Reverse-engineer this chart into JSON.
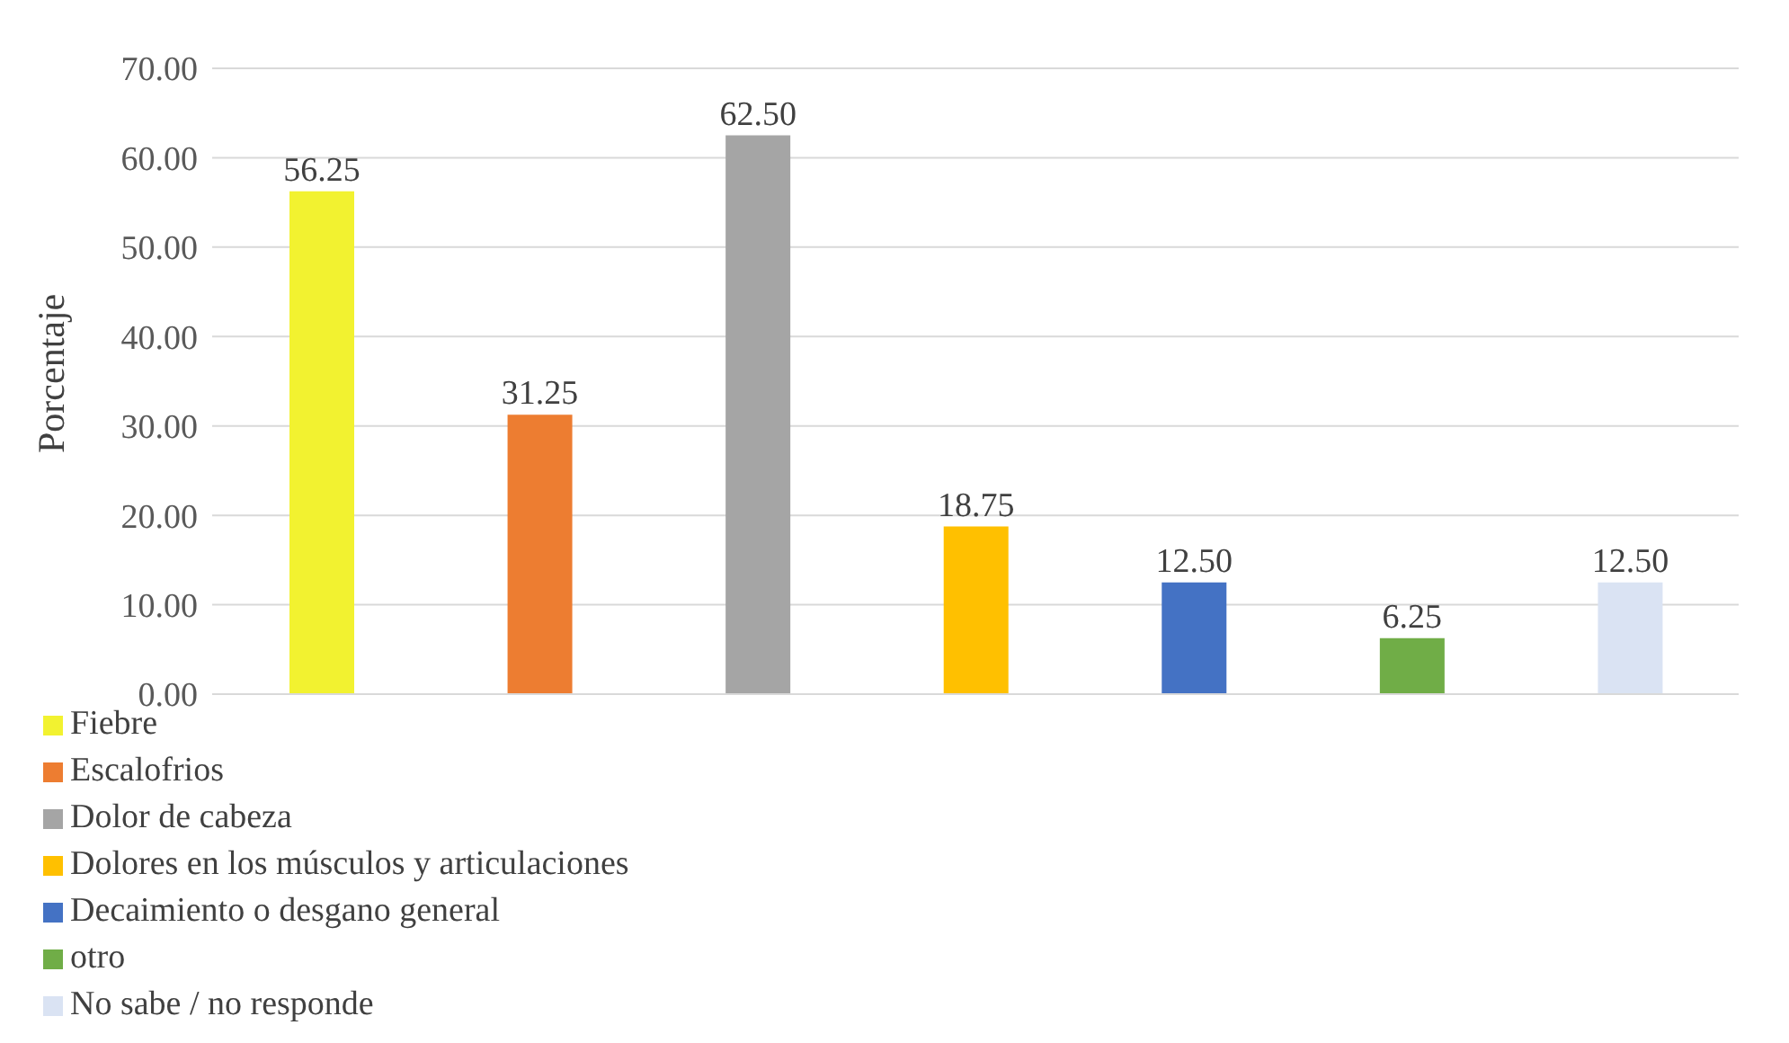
{
  "chart_data": {
    "type": "bar",
    "ylabel": "Porcentaje",
    "categories": [
      null,
      null,
      null,
      null,
      null,
      null,
      null
    ],
    "series": [
      {
        "name": "Fiebre",
        "color": "#f2f230",
        "values": [
          56.25,
          null,
          null,
          null,
          null,
          null,
          null
        ],
        "value_labels": [
          "56.25",
          null,
          null,
          null,
          null,
          null,
          null
        ]
      },
      {
        "name": "Escalofrios",
        "color": "#ed7d31",
        "values": [
          null,
          31.25,
          null,
          null,
          null,
          null,
          null
        ],
        "value_labels": [
          null,
          "31.25",
          null,
          null,
          null,
          null,
          null
        ]
      },
      {
        "name": "Dolor de cabeza",
        "color": "#a5a5a5",
        "values": [
          null,
          null,
          62.5,
          null,
          null,
          null,
          null
        ],
        "value_labels": [
          null,
          null,
          "62.50",
          null,
          null,
          null,
          null
        ]
      },
      {
        "name": "Dolores en los músculos y articulaciones",
        "color": "#ffc000",
        "values": [
          null,
          null,
          null,
          18.75,
          null,
          null,
          null
        ],
        "value_labels": [
          null,
          null,
          null,
          "18.75",
          null,
          null,
          null
        ]
      },
      {
        "name": "Decaimiento o desgano general",
        "color": "#4472c4",
        "values": [
          null,
          null,
          null,
          null,
          12.5,
          null,
          null
        ],
        "value_labels": [
          null,
          null,
          null,
          null,
          "12.50",
          null,
          null
        ]
      },
      {
        "name": "otro",
        "color": "#70ad47",
        "values": [
          null,
          null,
          null,
          null,
          null,
          6.25,
          null
        ],
        "value_labels": [
          null,
          null,
          null,
          null,
          null,
          "6.25",
          null
        ]
      },
      {
        "name": "No sabe / no responde",
        "color": "#dae3f3",
        "values": [
          null,
          null,
          null,
          null,
          null,
          null,
          12.5
        ],
        "value_labels": [
          null,
          null,
          null,
          null,
          null,
          null,
          "12.50"
        ]
      }
    ],
    "ylim": [
      0,
      70
    ],
    "yticks": [
      {
        "value": 0,
        "label": "0.00"
      },
      {
        "value": 10,
        "label": "10.00"
      },
      {
        "value": 20,
        "label": "20.00"
      },
      {
        "value": 30,
        "label": "30.00"
      },
      {
        "value": 40,
        "label": "40.00"
      },
      {
        "value": 50,
        "label": "50.00"
      },
      {
        "value": 60,
        "label": "60.00"
      },
      {
        "value": 70,
        "label": "70.00"
      }
    ],
    "grid": "y",
    "legend": "bottom",
    "tick_labels": "y"
  }
}
